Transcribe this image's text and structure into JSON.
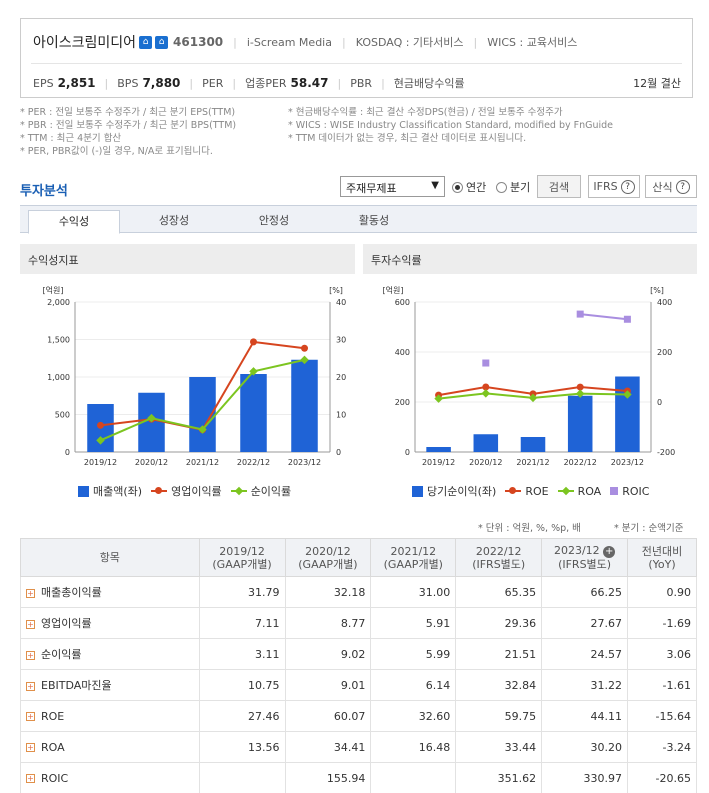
{
  "company": {
    "name": "아이스크림미디어",
    "code": "461300",
    "eng_name": "i-Scream Media",
    "market": "KOSDAQ : 기타서비스",
    "wics": "WICS : 교육서비스",
    "eps_label": "EPS",
    "eps_value": "2,851",
    "bps_label": "BPS",
    "bps_value": "7,880",
    "per_label": "PER",
    "ind_per_label": "업종PER",
    "ind_per_value": "58.47",
    "pbr_label": "PBR",
    "div_label": "현금배당수익률",
    "settle": "12월 결산"
  },
  "notes": {
    "left": [
      "* PER : 전일 보통주 수정주가 / 최근 분기 EPS(TTM)",
      "* PBR : 전일 보통주 수정주가 / 최근 분기 BPS(TTM)",
      "* TTM : 최근 4분기 합산",
      "* PER, PBR값이 (-)일 경우, N/A로 표기됩니다."
    ],
    "right": [
      "* 현금배당수익률 : 최근 결산 수정DPS(현금) / 전일 보통주 수정주가",
      "* WICS : WISE Industry Classification Standard, modified by FnGuide",
      "* TTM 데이터가 없는 경우, 최근 결산 데이터로 표시됩니다."
    ]
  },
  "toolbar": {
    "title": "투자분석",
    "select_value": "주재무제표",
    "radio_annual": "연간",
    "radio_quarter": "분기",
    "search": "검색",
    "ifrs": "IFRS",
    "formula": "산식",
    "q": "?"
  },
  "tabs": [
    "수익성",
    "성장성",
    "안정성",
    "활동성"
  ],
  "panels": {
    "left_title": "수익성지표",
    "right_title": "투자수익률"
  },
  "chart_data": [
    {
      "type": "bar",
      "title": "수익성지표",
      "categories": [
        "2019/12",
        "2020/12",
        "2021/12",
        "2022/12",
        "2023/12"
      ],
      "left_unit": "[억원]",
      "right_unit": "[%]",
      "ylim_left": [
        0,
        2000
      ],
      "ylim_right": [
        0,
        40
      ],
      "left_ticks": [
        "2,000",
        "1,500",
        "1,000",
        "500",
        "0"
      ],
      "right_ticks": [
        "40",
        "30",
        "20",
        "10",
        "0"
      ],
      "series": [
        {
          "name": "매출액(좌)",
          "kind": "bar",
          "axis": "left",
          "color": "#1f63d6",
          "values": [
            640,
            790,
            1000,
            1040,
            1230
          ]
        },
        {
          "name": "영업이익률",
          "kind": "line",
          "axis": "right",
          "color": "#d6451f",
          "values": [
            7.11,
            8.77,
            5.91,
            29.36,
            27.67
          ]
        },
        {
          "name": "순이익률",
          "kind": "line",
          "axis": "right",
          "color": "#7cc520",
          "values": [
            3.11,
            9.02,
            5.99,
            21.51,
            24.57
          ]
        }
      ]
    },
    {
      "type": "bar",
      "title": "투자수익률",
      "categories": [
        "2019/12",
        "2020/12",
        "2021/12",
        "2022/12",
        "2023/12"
      ],
      "left_unit": "[억원]",
      "right_unit": "[%]",
      "ylim_left": [
        0,
        600
      ],
      "ylim_right": [
        -200,
        400
      ],
      "left_ticks": [
        "600",
        "400",
        "200",
        "0"
      ],
      "right_ticks": [
        "400",
        "200",
        "0",
        "-200"
      ],
      "series": [
        {
          "name": "당기순이익(좌)",
          "kind": "bar",
          "axis": "left",
          "color": "#1f63d6",
          "values": [
            20,
            71,
            60,
            225,
            302
          ]
        },
        {
          "name": "ROE",
          "kind": "line",
          "axis": "right",
          "color": "#d6451f",
          "values": [
            27.46,
            60.07,
            32.6,
            59.75,
            44.11
          ]
        },
        {
          "name": "ROA",
          "kind": "line",
          "axis": "right",
          "color": "#7cc520",
          "values": [
            13.56,
            34.41,
            16.48,
            33.44,
            30.2
          ]
        },
        {
          "name": "ROIC",
          "kind": "line",
          "axis": "right",
          "color": "#a98ee0",
          "values": [
            null,
            155.94,
            null,
            351.62,
            330.97
          ]
        }
      ]
    }
  ],
  "unit_note": "* 단위 : 억원, %, %p, 배",
  "quarter_note": "* 분기 : 순액기준",
  "table": {
    "head_item": "항목",
    "columns": [
      [
        "2019/12",
        "(GAAP개별)"
      ],
      [
        "2020/12",
        "(GAAP개별)"
      ],
      [
        "2021/12",
        "(GAAP개별)"
      ],
      [
        "2022/12",
        "(IFRS별도)"
      ],
      [
        "2023/12",
        "(IFRS별도)"
      ],
      [
        "전년대비",
        "(YoY)"
      ]
    ],
    "rows": [
      {
        "label": "매출총이익률",
        "values": [
          "31.79",
          "32.18",
          "31.00",
          "65.35",
          "66.25",
          "0.90"
        ]
      },
      {
        "label": "영업이익률",
        "values": [
          "7.11",
          "8.77",
          "5.91",
          "29.36",
          "27.67",
          "-1.69"
        ]
      },
      {
        "label": "순이익률",
        "values": [
          "3.11",
          "9.02",
          "5.99",
          "21.51",
          "24.57",
          "3.06"
        ]
      },
      {
        "label": "EBITDA마진율",
        "values": [
          "10.75",
          "9.01",
          "6.14",
          "32.84",
          "31.22",
          "-1.61"
        ]
      },
      {
        "label": "ROE",
        "values": [
          "27.46",
          "60.07",
          "32.60",
          "59.75",
          "44.11",
          "-15.64"
        ]
      },
      {
        "label": "ROA",
        "values": [
          "13.56",
          "34.41",
          "16.48",
          "33.44",
          "30.20",
          "-3.24"
        ]
      },
      {
        "label": "ROIC",
        "values": [
          "",
          "155.94",
          "",
          "351.62",
          "330.97",
          "-20.65"
        ]
      }
    ]
  }
}
